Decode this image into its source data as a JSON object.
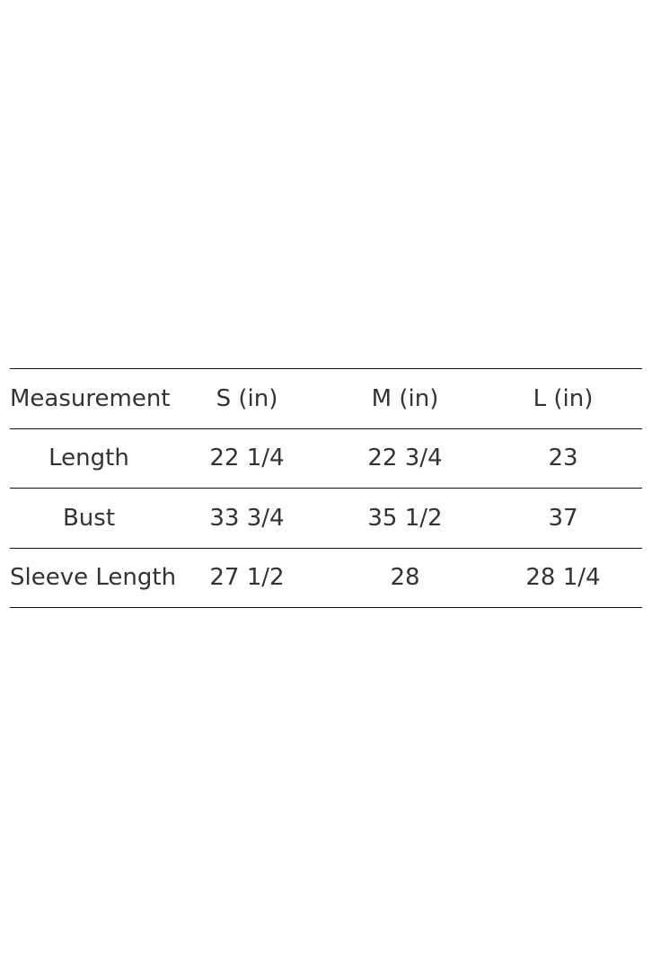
{
  "table": {
    "headers": [
      "Measurement",
      "S (in)",
      "M (in)",
      "L (in)"
    ],
    "rows": [
      [
        "Length",
        "22 1/4",
        "22 3/4",
        "23"
      ],
      [
        "Bust",
        "33 3/4",
        "35 1/2",
        "37"
      ],
      [
        "Sleeve Length",
        "27 1/2",
        "28",
        "28 1/4"
      ]
    ]
  }
}
